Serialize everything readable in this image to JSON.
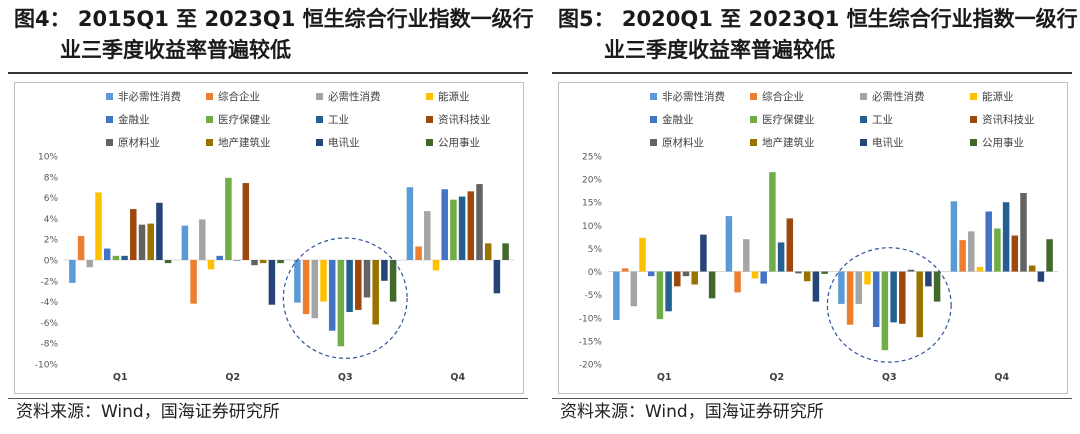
{
  "chart_data": [
    {
      "type": "bar",
      "title": "图4： 2015Q1 至 2023Q1 恒生综合行业指数一级行业三季度收益率普遍较低",
      "title_line1": "图4： 2015Q1 至 2023Q1 恒生综合行业指数一级行",
      "title_line2": "业三季度收益率普遍较低",
      "source": "资料来源：Wind，国海证券研究所",
      "categories": [
        "Q1",
        "Q2",
        "Q3",
        "Q4"
      ],
      "ylim": [
        -10,
        10
      ],
      "yticks": [
        -10,
        -8,
        -6,
        -4,
        -2,
        0,
        2,
        4,
        6,
        8,
        10
      ],
      "ytick_labels": [
        "-10%",
        "-8%",
        "-6%",
        "-4%",
        "-2%",
        "0%",
        "2%",
        "4%",
        "6%",
        "8%",
        "10%"
      ],
      "legend_position": "top",
      "grid": false,
      "highlight": {
        "category": "Q3",
        "shape": "dashed-ellipse"
      },
      "series": [
        {
          "name": "非必需性消费",
          "values": [
            -2.2,
            3.3,
            -4.1,
            7.0
          ]
        },
        {
          "name": "综合企业",
          "values": [
            2.3,
            -4.2,
            -5.2,
            1.3
          ]
        },
        {
          "name": "必需性消费",
          "values": [
            -0.7,
            3.9,
            -5.6,
            4.7
          ]
        },
        {
          "name": "能源业",
          "values": [
            6.5,
            -0.9,
            -4.0,
            -1.0
          ]
        },
        {
          "name": "金融业",
          "values": [
            1.1,
            0.4,
            -6.8,
            6.8
          ]
        },
        {
          "name": "医疗保健业",
          "values": [
            0.4,
            7.9,
            -8.3,
            5.8
          ]
        },
        {
          "name": "工业",
          "values": [
            0.4,
            0.0,
            -5.0,
            6.1
          ]
        },
        {
          "name": "资讯科技业",
          "values": [
            4.9,
            7.4,
            -4.8,
            6.6
          ]
        },
        {
          "name": "原材料业",
          "values": [
            3.4,
            -0.5,
            -3.6,
            7.3
          ]
        },
        {
          "name": "地产建筑业",
          "values": [
            3.5,
            -0.3,
            -6.2,
            1.6
          ]
        },
        {
          "name": "电讯业",
          "values": [
            5.5,
            -4.3,
            -2.0,
            -3.2
          ]
        },
        {
          "name": "公用事业",
          "values": [
            -0.3,
            -0.3,
            -4.0,
            1.6
          ]
        }
      ]
    },
    {
      "type": "bar",
      "title": "图5： 2020Q1 至 2023Q1 恒生综合行业指数一级行业三季度收益率普遍较低",
      "title_line1": "图5： 2020Q1 至 2023Q1 恒生综合行业指数一级行",
      "title_line2": "业三季度收益率普遍较低",
      "source": "资料来源：Wind，国海证券研究所",
      "categories": [
        "Q1",
        "Q2",
        "Q3",
        "Q4"
      ],
      "ylim": [
        -20,
        25
      ],
      "yticks": [
        -20,
        -15,
        -10,
        -5,
        0,
        5,
        10,
        15,
        20,
        25
      ],
      "ytick_labels": [
        "-20%",
        "-15%",
        "-10%",
        "-5%",
        "0%",
        "5%",
        "10%",
        "15%",
        "20%",
        "25%"
      ],
      "legend_position": "top",
      "grid": false,
      "highlight": {
        "category": "Q3",
        "shape": "dashed-ellipse"
      },
      "series": [
        {
          "name": "非必需性消费",
          "values": [
            -10.5,
            12.0,
            -7.0,
            15.2
          ]
        },
        {
          "name": "综合企业",
          "values": [
            0.7,
            -4.5,
            -11.5,
            6.8
          ]
        },
        {
          "name": "必需性消费",
          "values": [
            -7.5,
            7.0,
            -7.0,
            8.7
          ]
        },
        {
          "name": "能源业",
          "values": [
            7.3,
            -1.5,
            -2.8,
            1.0
          ]
        },
        {
          "name": "金融业",
          "values": [
            -1.0,
            -2.6,
            -12.0,
            13.0
          ]
        },
        {
          "name": "医疗保健业",
          "values": [
            -10.3,
            21.5,
            -17.0,
            9.3
          ]
        },
        {
          "name": "工业",
          "values": [
            -8.6,
            6.3,
            -11.0,
            15.0
          ]
        },
        {
          "name": "资讯科技业",
          "values": [
            -3.2,
            11.5,
            -11.3,
            7.8
          ]
        },
        {
          "name": "原材料业",
          "values": [
            -1.0,
            -0.4,
            0.4,
            17.0
          ]
        },
        {
          "name": "地产建筑业",
          "values": [
            -2.8,
            -2.1,
            -14.2,
            1.3
          ]
        },
        {
          "name": "电讯业",
          "values": [
            8.0,
            -6.5,
            -3.2,
            -2.2
          ]
        },
        {
          "name": "公用事业",
          "values": [
            -5.8,
            -0.5,
            -6.5,
            7.0
          ]
        }
      ]
    }
  ],
  "colors": [
    "#5b9bd5",
    "#ed7d31",
    "#a5a5a5",
    "#ffc000",
    "#4472c4",
    "#70ad47",
    "#255e91",
    "#9e480e",
    "#636363",
    "#997300",
    "#264478",
    "#43682b"
  ]
}
